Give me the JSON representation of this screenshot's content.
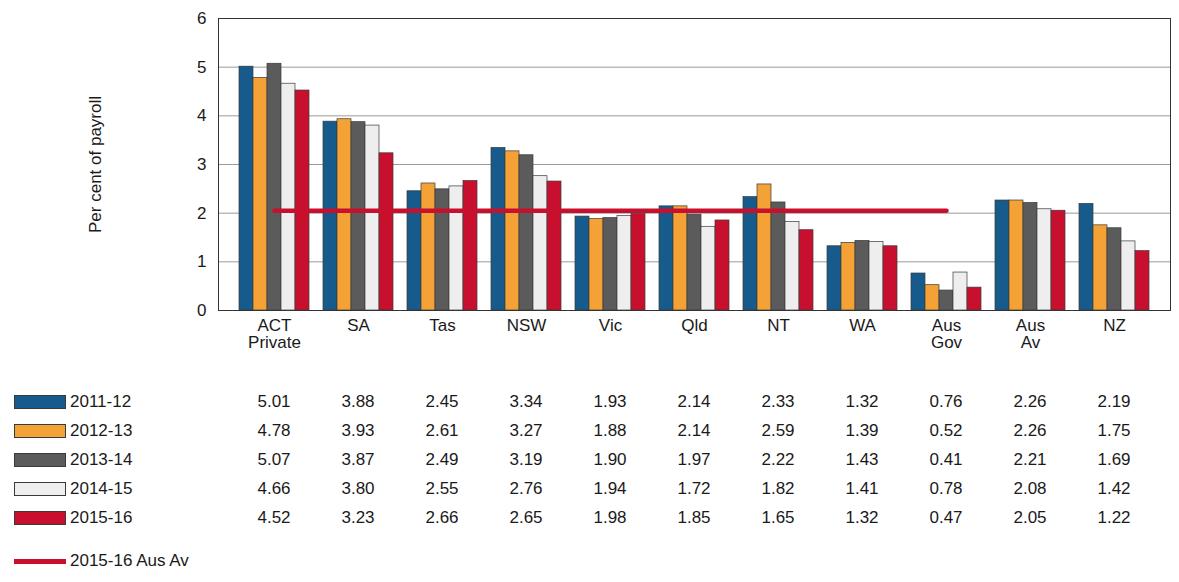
{
  "chart_data": {
    "type": "bar",
    "ylabel": "Per cent of payroll",
    "categories": [
      "ACT Private",
      "SA",
      "Tas",
      "NSW",
      "Vic",
      "Qld",
      "NT",
      "WA",
      "Aus Gov",
      "Aus Av",
      "NZ"
    ],
    "series": [
      {
        "name": "2011-12",
        "color": "#175a8c",
        "values": [
          5.01,
          3.88,
          2.45,
          3.34,
          1.93,
          2.14,
          2.33,
          1.32,
          0.76,
          2.26,
          2.19
        ],
        "value_labels": [
          "5.01",
          "3.88",
          "2.45",
          "3.34",
          "1.93",
          "2.14",
          "2.33",
          "1.32",
          "0.76",
          "2.26",
          "2.19"
        ]
      },
      {
        "name": "2012-13",
        "color": "#f4a135",
        "values": [
          4.78,
          3.93,
          2.61,
          3.27,
          1.88,
          2.14,
          2.59,
          1.39,
          0.52,
          2.26,
          1.75
        ],
        "value_labels": [
          "4.78",
          "3.93",
          "2.61",
          "3.27",
          "1.88",
          "2.14",
          "2.59",
          "1.39",
          "0.52",
          "2.26",
          "1.75"
        ]
      },
      {
        "name": "2013-14",
        "color": "#5b5b5b",
        "values": [
          5.07,
          3.87,
          2.49,
          3.19,
          1.9,
          1.97,
          2.22,
          1.43,
          0.41,
          2.21,
          1.69
        ],
        "value_labels": [
          "5.07",
          "3.87",
          "2.49",
          "3.19",
          "1.90",
          "1.97",
          "2.22",
          "1.43",
          "0.41",
          "2.21",
          "1.69"
        ]
      },
      {
        "name": "2014-15",
        "color": "#eeeeee",
        "values": [
          4.66,
          3.8,
          2.55,
          2.76,
          1.94,
          1.72,
          1.82,
          1.41,
          0.78,
          2.08,
          1.42
        ],
        "value_labels": [
          "4.66",
          "3.80",
          "2.55",
          "2.76",
          "1.94",
          "1.72",
          "1.82",
          "1.41",
          "0.78",
          "2.08",
          "1.42"
        ]
      },
      {
        "name": "2015-16",
        "color": "#c8102e",
        "values": [
          4.52,
          3.23,
          2.66,
          2.65,
          1.98,
          1.85,
          1.65,
          1.32,
          0.47,
          2.05,
          1.22
        ],
        "value_labels": [
          "4.52",
          "3.23",
          "2.66",
          "2.65",
          "1.98",
          "1.85",
          "1.65",
          "1.32",
          "0.47",
          "2.05",
          "1.22"
        ]
      },
      {
        "name": "2015-16 Aus Av",
        "type": "line",
        "color": "#c8102e",
        "values": [
          2.05,
          2.05,
          2.05,
          2.05,
          2.05,
          2.05,
          2.05,
          2.05,
          2.05,
          null,
          null
        ]
      }
    ],
    "ylim": [
      0,
      6
    ],
    "yticks": [
      0,
      1,
      2,
      3,
      4,
      5,
      6
    ],
    "grid": true
  }
}
